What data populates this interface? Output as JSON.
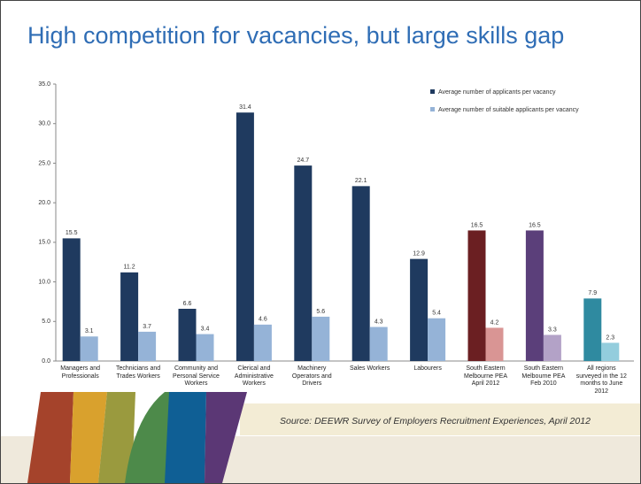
{
  "title": "High competition for vacancies, but large skills gap",
  "source": "Source: DEEWR Survey of Employers Recruitment Experiences, April 2012",
  "chart_data": {
    "type": "bar",
    "categories": [
      "Managers and Professionals",
      "Technicians and Trades Workers",
      "Community and Personal Service Workers",
      "Clerical and Administrative Workers",
      "Machinery Operators and Drivers",
      "Sales Workers",
      "Labourers",
      "South Eastern Melbourne PEA April 2012",
      "South Eastern Melbourne PEA Feb 2010",
      "All regions surveyed in the 12 months to June 2012"
    ],
    "series": [
      {
        "name": "Average number of applicants per vacancy",
        "color": "#1f3a5f",
        "colors": [
          "#1f3a5f",
          "#1f3a5f",
          "#1f3a5f",
          "#1f3a5f",
          "#1f3a5f",
          "#1f3a5f",
          "#1f3a5f",
          "#6b1f22",
          "#5b3f7a",
          "#2f8aa0"
        ],
        "values": [
          15.5,
          11.2,
          6.6,
          31.4,
          24.7,
          22.1,
          12.9,
          16.5,
          16.5,
          7.9
        ]
      },
      {
        "name": "Average number of suitable applicants per vacancy",
        "color": "#95b3d7",
        "colors": [
          "#95b3d7",
          "#95b3d7",
          "#95b3d7",
          "#95b3d7",
          "#95b3d7",
          "#95b3d7",
          "#95b3d7",
          "#d99594",
          "#b3a2c7",
          "#93cddd"
        ],
        "values": [
          3.1,
          3.7,
          3.4,
          4.6,
          5.6,
          4.3,
          5.4,
          4.2,
          3.3,
          2.3
        ]
      }
    ],
    "ylim": [
      0,
      35
    ],
    "yticks": [
      {
        "value": 0,
        "label": "0.0"
      },
      {
        "value": 5,
        "label": "5.0"
      },
      {
        "value": 10,
        "label": "10.0"
      },
      {
        "value": 15,
        "label": "15.0"
      },
      {
        "value": 20,
        "label": "20.0"
      },
      {
        "value": 25,
        "label": "25.0"
      },
      {
        "value": 30,
        "label": "30.0"
      },
      {
        "value": 35,
        "label": "35.0"
      }
    ],
    "legend": "top-right"
  }
}
